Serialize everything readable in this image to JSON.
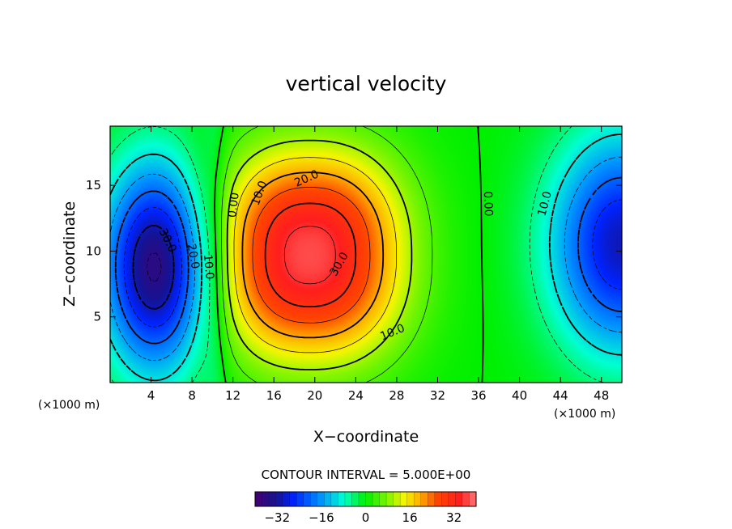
{
  "chart_data": {
    "type": "contour",
    "title": "vertical velocity",
    "xlabel": "X−coordinate",
    "ylabel": "Z−coordinate",
    "x_unit": "(×1000 m)",
    "xlim": [
      0,
      50
    ],
    "ylim": [
      0,
      19.5
    ],
    "x_ticks": [
      4,
      8,
      12,
      16,
      20,
      24,
      28,
      32,
      36,
      40,
      44,
      48
    ],
    "x_tick_labels": [
      "4",
      "8",
      "12",
      "16",
      "20",
      "24",
      "28",
      "32",
      "36",
      "40",
      "44",
      "48"
    ],
    "y_ticks": [
      5,
      10,
      15
    ],
    "y_tick_labels": [
      "5",
      "10",
      "15"
    ],
    "contour_interval_text": "CONTOUR INTERVAL = 5.000E+00",
    "contour_interval": 5,
    "field_extrema": [
      {
        "kind": "max",
        "x": 19.5,
        "z": 9.7,
        "value": 37
      },
      {
        "kind": "min",
        "x": 4.5,
        "z": 8.8,
        "value": -37
      },
      {
        "kind": "min",
        "x": 50,
        "z": 10.5,
        "value": -30
      }
    ],
    "contour_labels": [
      {
        "text": "0.00",
        "x": 12.1,
        "z": 13.5,
        "angle": -83
      },
      {
        "text": "10.0",
        "x": 14.6,
        "z": 14.4,
        "angle": -70
      },
      {
        "text": "20.0",
        "x": 19.2,
        "z": 15.5,
        "angle": -24
      },
      {
        "text": "30.0",
        "x": 22.4,
        "z": 9.0,
        "angle": -60
      },
      {
        "text": "10.0",
        "x": 27.6,
        "z": 3.8,
        "angle": -22
      },
      {
        "text": "0.00",
        "x": 36.9,
        "z": 13.6,
        "angle": 88
      },
      {
        "text": "10.0",
        "x": 42.5,
        "z": 13.6,
        "angle": -75
      },
      {
        "text": "30.0",
        "x": 5.6,
        "z": 10.8,
        "angle": 63
      },
      {
        "text": "20.0",
        "x": 8.1,
        "z": 9.6,
        "angle": 80
      },
      {
        "text": "10.0",
        "x": 9.6,
        "z": 8.8,
        "angle": 85
      }
    ],
    "colorbar": {
      "min": -40,
      "max": 40,
      "ticks": [
        -32,
        -16,
        0,
        16,
        32
      ],
      "tick_labels": [
        "−32",
        "−16",
        "0",
        "16",
        "32"
      ]
    }
  }
}
